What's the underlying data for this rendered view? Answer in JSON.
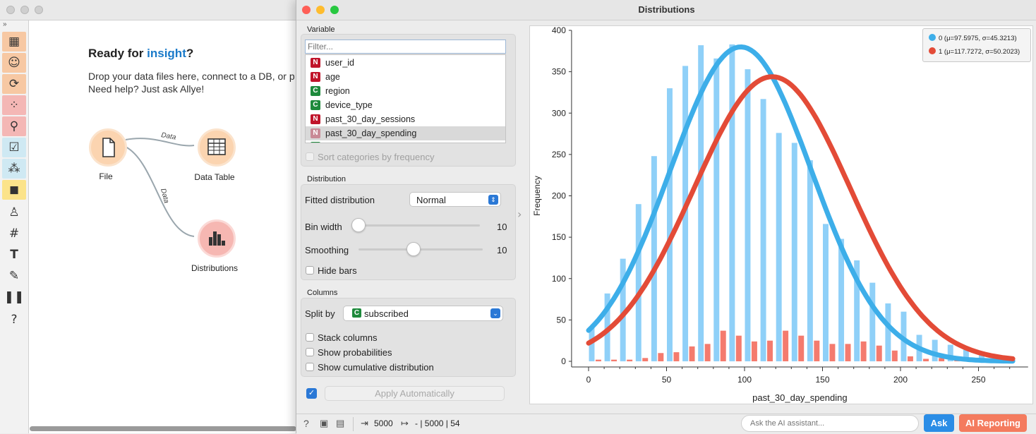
{
  "window": {
    "title": "Distributions"
  },
  "canvas": {
    "heading_prefix": "Ready for ",
    "heading_highlight": "insight",
    "heading_suffix": "?",
    "drop_line1": "Drop your data files here, connect to a DB, or p",
    "drop_line2": "Need help? Just ask Allye!",
    "nodes": {
      "file": "File",
      "data_table": "Data Table",
      "distributions": "Distributions"
    },
    "link_label": "Data"
  },
  "variable": {
    "section_label": "Variable",
    "filter_placeholder": "Filter...",
    "items": [
      {
        "type": "N",
        "name": "user_id"
      },
      {
        "type": "N",
        "name": "age"
      },
      {
        "type": "C",
        "name": "region"
      },
      {
        "type": "C",
        "name": "device_type"
      },
      {
        "type": "N",
        "name": "past_30_day_sessions"
      },
      {
        "type": "N",
        "name": "past_30_day_spending",
        "selected": true
      }
    ],
    "sort_label": "Sort categories by frequency"
  },
  "distribution": {
    "section_label": "Distribution",
    "fitted_label": "Fitted distribution",
    "fitted_value": "Normal",
    "bin_width_label": "Bin width",
    "bin_width_value": "10",
    "bin_width_level": 0.0,
    "smoothing_label": "Smoothing",
    "smoothing_value": "10",
    "smoothing_level": 0.45,
    "hide_bars_label": "Hide bars"
  },
  "columns": {
    "section_label": "Columns",
    "split_label": "Split by",
    "split_value": "subscribed",
    "split_badge": "C",
    "stack_label": "Stack columns",
    "prob_label": "Show probabilities",
    "cumul_label": "Show cumulative distribution"
  },
  "apply": {
    "label": "Apply Automatically",
    "checked": true
  },
  "statusbar": {
    "input_count": "5000",
    "output_summary": "- | 5000 | 54",
    "ask_placeholder": "Ask the AI assistant...",
    "ask_button": "Ask",
    "report_button": "AI Reporting"
  },
  "colors": {
    "series0": "#3daee9",
    "series0_bar": "#8fd0f8",
    "series1": "#e34b37",
    "series1_bar": "#f47b6e",
    "accent": "#2a78d6",
    "report": "#f47b5e"
  },
  "chart_data": {
    "type": "bar",
    "xlabel": "past_30_day_spending",
    "ylabel": "Frequency",
    "xlim": [
      -10,
      280
    ],
    "ylim": [
      0,
      400
    ],
    "xticks": [
      0,
      50,
      100,
      150,
      200,
      250
    ],
    "yticks": [
      0,
      50,
      100,
      150,
      200,
      250,
      300,
      350,
      400
    ],
    "bin_width": 10,
    "bins": [
      0,
      10,
      20,
      30,
      40,
      50,
      60,
      70,
      80,
      90,
      100,
      110,
      120,
      130,
      140,
      150,
      160,
      170,
      180,
      190,
      200,
      210,
      220,
      230,
      240,
      250,
      260
    ],
    "series": [
      {
        "name": "0 (μ=97.5975, σ=45.3213)",
        "values": [
          40,
          82,
          124,
          190,
          248,
          330,
          357,
          382,
          366,
          383,
          353,
          317,
          276,
          264,
          243,
          166,
          148,
          122,
          95,
          70,
          60,
          32,
          26,
          20,
          14,
          10,
          8
        ],
        "mu": 97.5975,
        "sigma": 45.3213
      },
      {
        "name": "1 (μ=117.7272, σ=50.2023)",
        "values": [
          2,
          2,
          2,
          4,
          10,
          11,
          18,
          21,
          37,
          31,
          24,
          25,
          37,
          31,
          25,
          21,
          21,
          24,
          19,
          13,
          6,
          3,
          4,
          2,
          1,
          1,
          1
        ],
        "mu": 117.7272,
        "sigma": 50.2023
      }
    ]
  }
}
